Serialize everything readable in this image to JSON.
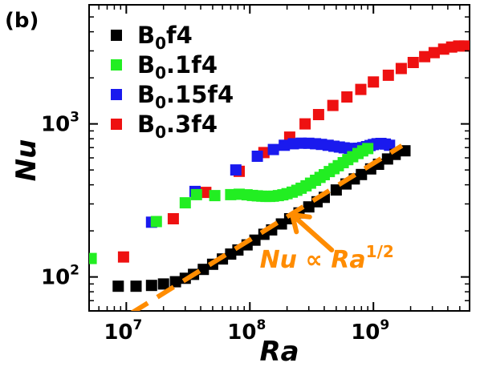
{
  "panel_label": "(b)",
  "chart_data": {
    "type": "scatter",
    "xlabel": "Ra",
    "ylabel": "Nu",
    "xscale": "log",
    "yscale": "log",
    "xlim": [
      5000000.0,
      6000000000.0
    ],
    "ylim": [
      60,
      6000
    ],
    "xticks": [
      {
        "value": 10000000.0,
        "base": "10",
        "exp": "7"
      },
      {
        "value": 100000000.0,
        "base": "10",
        "exp": "8"
      },
      {
        "value": 1000000000.0,
        "base": "10",
        "exp": "9"
      }
    ],
    "yticks": [
      {
        "value": 100,
        "base": "10",
        "exp": "2"
      },
      {
        "value": 1000,
        "base": "10",
        "exp": "3"
      }
    ],
    "legend_position": "top-left",
    "series": [
      {
        "name": "B0f4",
        "name_main": "B",
        "name_sub": "0",
        "name_rest": "f4",
        "color": "#000000",
        "points": [
          [
            8600000.0,
            87
          ],
          [
            12000000.0,
            87
          ],
          [
            16000000.0,
            88
          ],
          [
            20000000.0,
            90
          ],
          [
            25000000.0,
            93
          ],
          [
            30000000.0,
            98
          ],
          [
            35000000.0,
            104
          ],
          [
            42000000.0,
            112
          ],
          [
            50000000.0,
            121
          ],
          [
            60000000.0,
            131
          ],
          [
            70000000.0,
            141
          ],
          [
            80000000.0,
            150
          ],
          [
            95000000.0,
            162
          ],
          [
            110000000.0,
            174
          ],
          [
            130000000.0,
            190
          ],
          [
            150000000.0,
            203
          ],
          [
            180000000.0,
            222
          ],
          [
            210000000.0,
            240
          ],
          [
            250000000.0,
            262
          ],
          [
            300000000.0,
            287
          ],
          [
            350000000.0,
            310
          ],
          [
            400000000.0,
            331
          ],
          [
            500000000.0,
            370
          ],
          [
            600000000.0,
            405
          ],
          [
            700000000.0,
            437
          ],
          [
            800000000.0,
            467
          ],
          [
            950000000.0,
            508
          ],
          [
            1100000000.0,
            545
          ],
          [
            1300000000.0,
            590
          ],
          [
            1500000000.0,
            632
          ],
          [
            1800000000.0,
            667
          ]
        ]
      },
      {
        "name": "B0.1f4",
        "name_main": "B",
        "name_sub": "0",
        "name_rest": ".1f4",
        "color": "#22ee22",
        "points": [
          [
            5200000.0,
            132
          ],
          [
            17500000.0,
            230
          ],
          [
            30000000.0,
            305
          ],
          [
            37000000.0,
            345
          ],
          [
            52000000.0,
            340
          ],
          [
            70000000.0,
            345
          ],
          [
            82000000.0,
            347
          ],
          [
            95000000.0,
            344
          ],
          [
            105000000.0,
            341
          ],
          [
            115000000.0,
            339
          ],
          [
            125000000.0,
            337
          ],
          [
            135000000.0,
            336
          ],
          [
            145000000.0,
            336
          ],
          [
            155000000.0,
            337
          ],
          [
            170000000.0,
            340
          ],
          [
            185000000.0,
            344
          ],
          [
            200000000.0,
            350
          ],
          [
            220000000.0,
            358
          ],
          [
            240000000.0,
            368
          ],
          [
            260000000.0,
            380
          ],
          [
            285000000.0,
            394
          ],
          [
            310000000.0,
            410
          ],
          [
            340000000.0,
            428
          ],
          [
            370000000.0,
            447
          ],
          [
            400000000.0,
            466
          ],
          [
            440000000.0,
            488
          ],
          [
            480000000.0,
            510
          ],
          [
            520000000.0,
            533
          ],
          [
            570000000.0,
            558
          ],
          [
            620000000.0,
            584
          ],
          [
            680000000.0,
            610
          ],
          [
            750000000.0,
            640
          ],
          [
            820000000.0,
            666
          ],
          [
            900000000.0,
            690
          ]
        ]
      },
      {
        "name": "B0.15f4",
        "name_main": "B",
        "name_sub": "0",
        "name_rest": ".15f4",
        "color": "#1a1aee",
        "points": [
          [
            16000000.0,
            228
          ],
          [
            36000000.0,
            362
          ],
          [
            77000000.0,
            500
          ],
          [
            115000000.0,
            615
          ],
          [
            155000000.0,
            680
          ],
          [
            190000000.0,
            725
          ],
          [
            225000000.0,
            742
          ],
          [
            260000000.0,
            748
          ],
          [
            300000000.0,
            747
          ],
          [
            340000000.0,
            742
          ],
          [
            380000000.0,
            735
          ],
          [
            430000000.0,
            725
          ],
          [
            480000000.0,
            715
          ],
          [
            530000000.0,
            706
          ],
          [
            580000000.0,
            698
          ],
          [
            640000000.0,
            692
          ],
          [
            700000000.0,
            690
          ],
          [
            760000000.0,
            693
          ],
          [
            820000000.0,
            700
          ],
          [
            880000000.0,
            710
          ],
          [
            940000000.0,
            722
          ],
          [
            1000000000.0,
            733
          ],
          [
            1070000000.0,
            742
          ],
          [
            1150000000.0,
            745
          ],
          [
            1250000000.0,
            738
          ],
          [
            1350000000.0,
            725
          ]
        ]
      },
      {
        "name": "B0.3f4",
        "name_main": "B",
        "name_sub": "0",
        "name_rest": ".3f4",
        "color": "#ee1111",
        "points": [
          [
            9500000.0,
            135
          ],
          [
            24000000.0,
            240
          ],
          [
            44000000.0,
            357
          ],
          [
            82000000.0,
            490
          ],
          [
            130000000.0,
            650
          ],
          [
            210000000.0,
            820
          ],
          [
            280000000.0,
            1000
          ],
          [
            360000000.0,
            1150
          ],
          [
            470000000.0,
            1320
          ],
          [
            610000000.0,
            1500
          ],
          [
            790000000.0,
            1680
          ],
          [
            1000000000.0,
            1880
          ],
          [
            1320000000.0,
            2080
          ],
          [
            1680000000.0,
            2300
          ],
          [
            2100000000.0,
            2520
          ],
          [
            2600000000.0,
            2750
          ],
          [
            3100000000.0,
            2920
          ],
          [
            3700000000.0,
            3080
          ],
          [
            4300000000.0,
            3180
          ],
          [
            4900000000.0,
            3230
          ],
          [
            5500000000.0,
            3230
          ]
        ]
      }
    ],
    "fit_line": {
      "color": "#ff8c00",
      "label_main": "Nu",
      "label_prop": "∝",
      "label_var": "Ra",
      "label_exp": "1/2",
      "x_range": [
        11000000.0,
        1700000000.0
      ],
      "y_start": 58,
      "slope": 0.5,
      "arrow_tip": [
        220000000.0,
        255
      ],
      "arrow_tail": [
        460000000.0,
        150
      ],
      "label_anchor": [
        420000000.0,
        115
      ]
    }
  }
}
